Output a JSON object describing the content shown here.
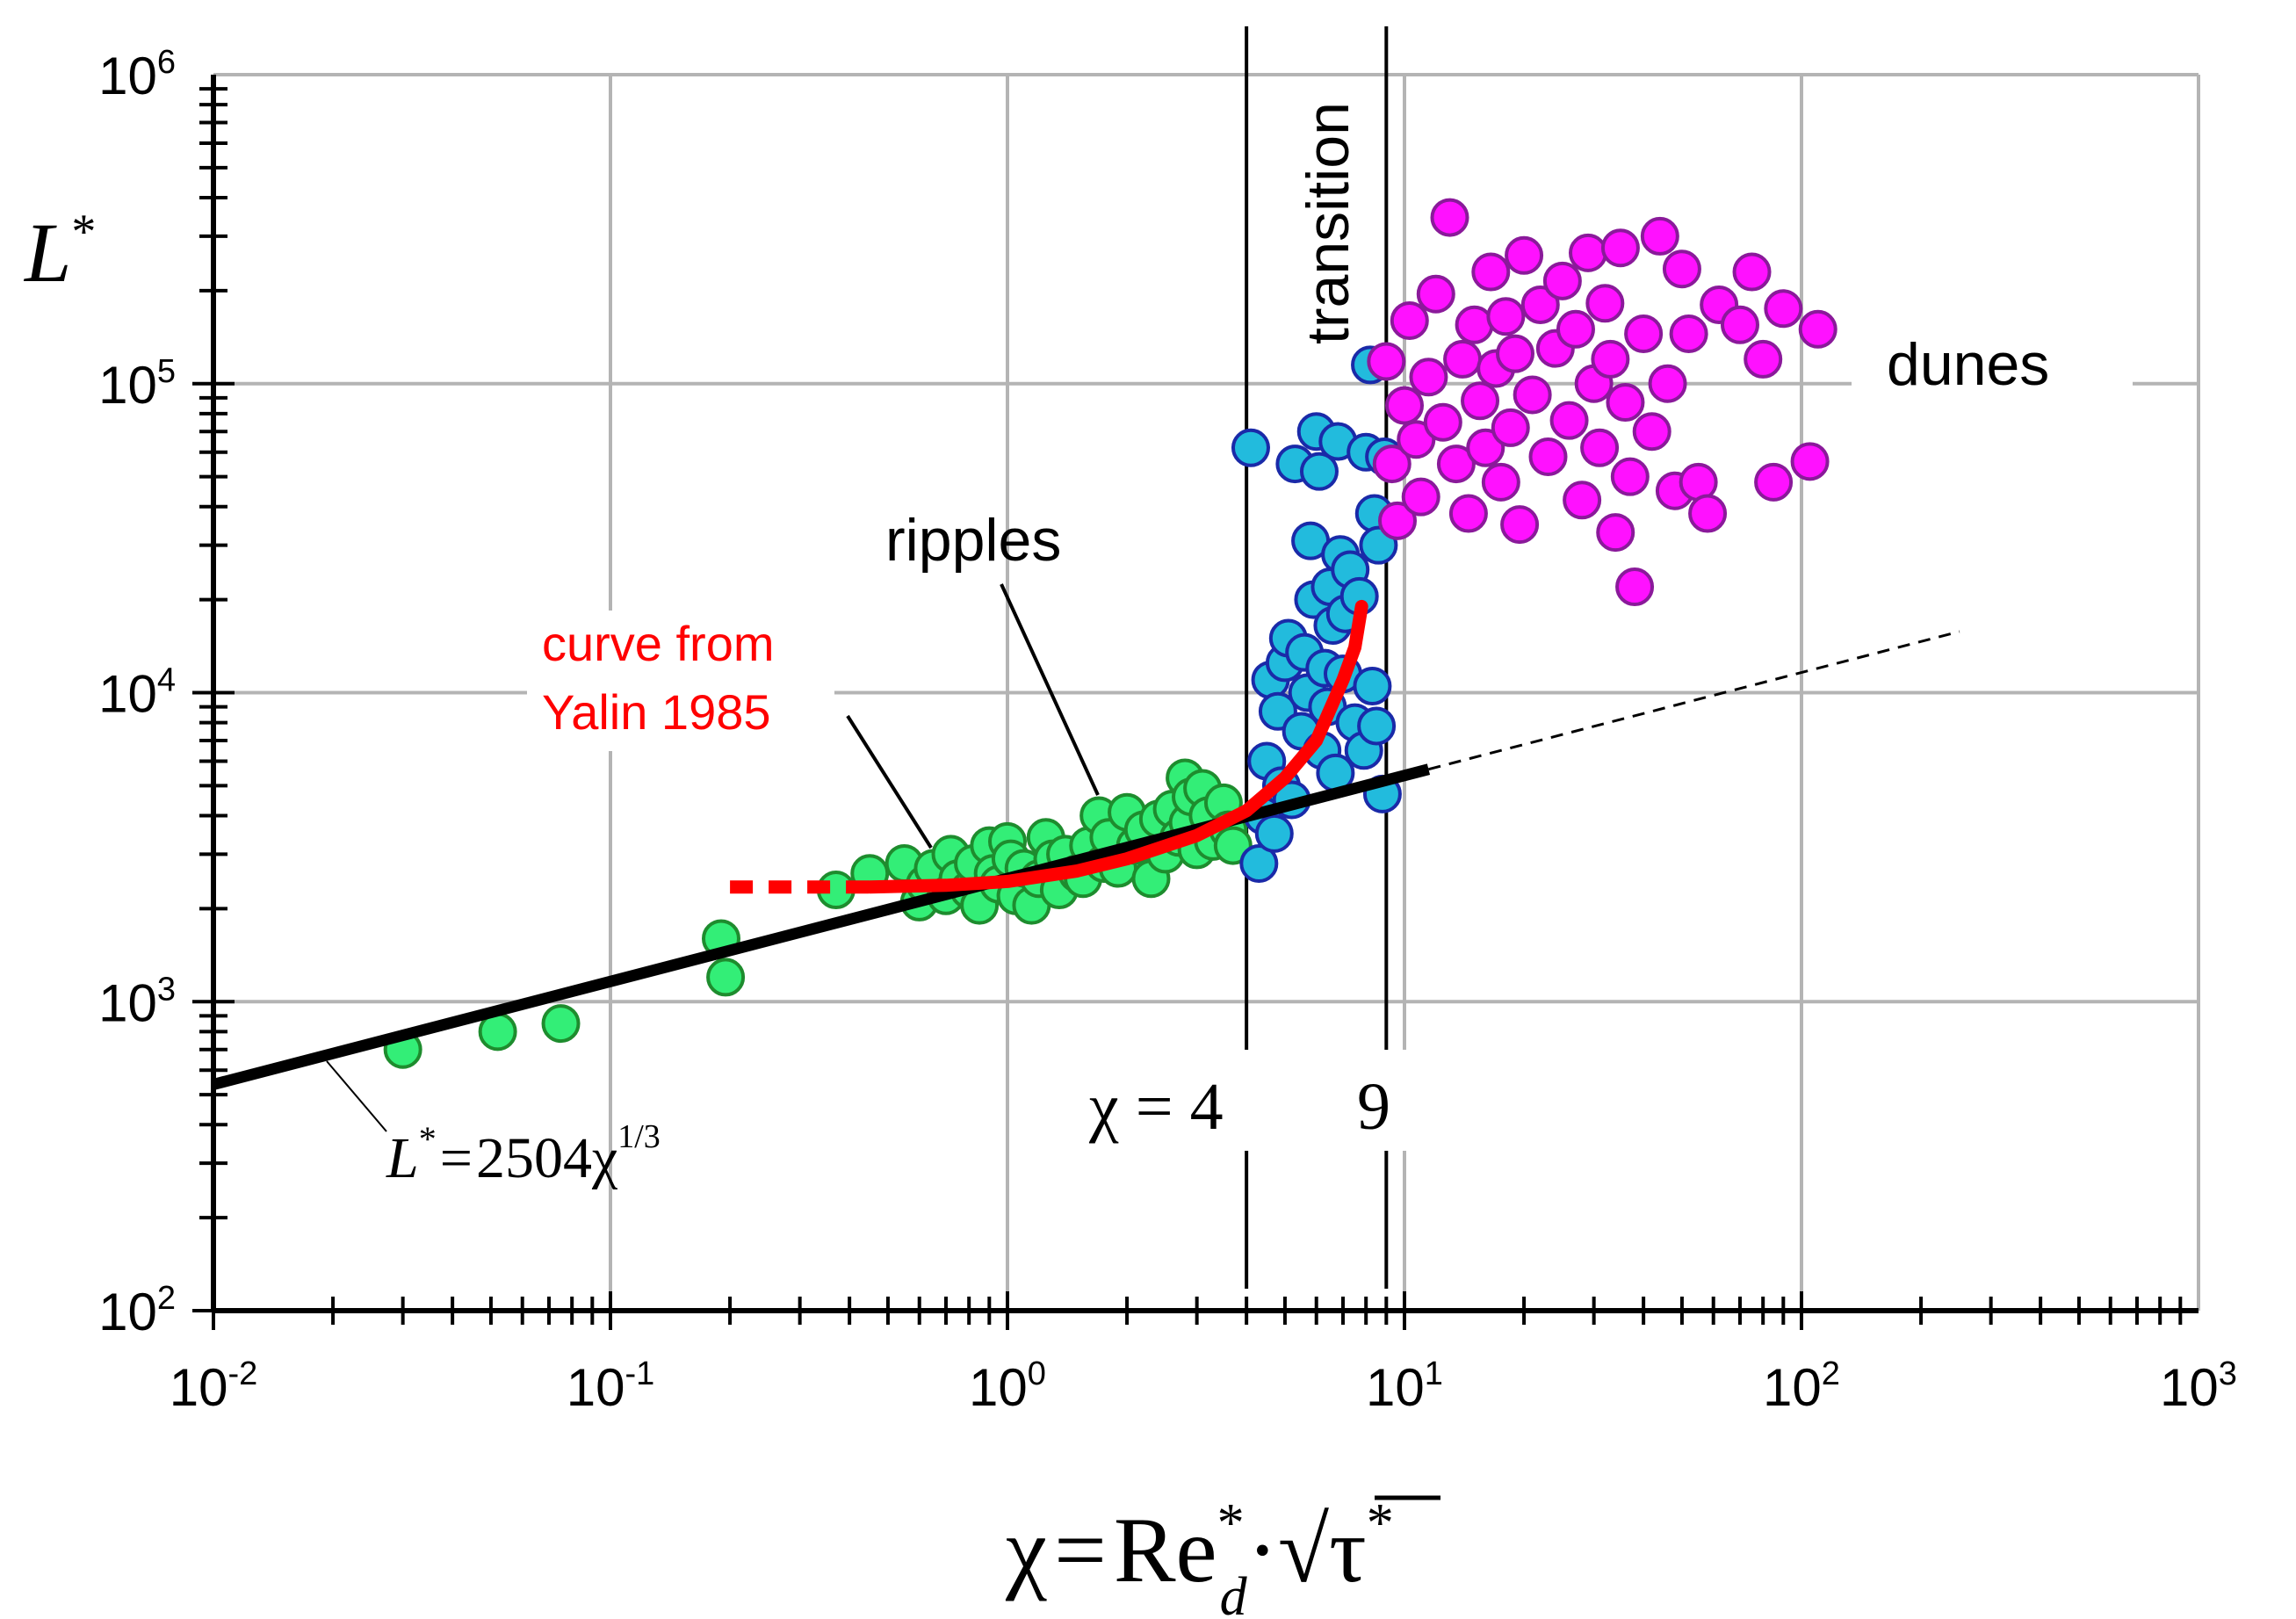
{
  "chart_data": {
    "type": "scatter",
    "title": "",
    "x_scale": "log",
    "y_scale": "log",
    "xlim": [
      0.01,
      1000
    ],
    "ylim": [
      100,
      1000000
    ],
    "grid": true,
    "x_ticks": [
      {
        "base": "10",
        "exp": "-2"
      },
      {
        "base": "10",
        "exp": "-1"
      },
      {
        "base": "10",
        "exp": "0"
      },
      {
        "base": "10",
        "exp": "1"
      },
      {
        "base": "10",
        "exp": "2"
      },
      {
        "base": "10",
        "exp": "3"
      }
    ],
    "y_ticks": [
      {
        "base": "10",
        "exp": "2"
      },
      {
        "base": "10",
        "exp": "3"
      },
      {
        "base": "10",
        "exp": "4"
      },
      {
        "base": "10",
        "exp": "5"
      },
      {
        "base": "10",
        "exp": "6"
      }
    ],
    "y_label": {
      "main": "L",
      "sup": "*"
    },
    "x_label": {
      "lhs": "χ",
      "eq": "=",
      "re": "Re",
      "re_sup": "*",
      "re_sub": "d",
      "dot": "·",
      "sqrt": "√",
      "tau": "τ",
      "tau_sup": "*"
    },
    "annotations": {
      "transition": "transition",
      "dunes": "dunes",
      "ripples": "ripples",
      "yalin_line1": "curve from",
      "yalin_line2": "Yalin 1985",
      "chi_eq_4": "χ = 4",
      "nine": "9",
      "fit_lhs": "L",
      "fit_sup": "*",
      "fit_eq": "=",
      "fit_coef": "2504",
      "fit_chi": "χ",
      "fit_exp": "1/3"
    },
    "vertical_lines": [
      4,
      9
    ],
    "fit_line": {
      "coef": 2504,
      "exponent": 0.3333,
      "solid_range": [
        0.01,
        11.5
      ],
      "dashed_range": [
        11.5,
        250
      ],
      "color": "#000000"
    },
    "yalin_curve": {
      "color": "#ff0000",
      "dashed": [
        [
          0.2,
          2350
        ],
        [
          0.45,
          2350
        ]
      ],
      "solid": [
        [
          0.45,
          2350
        ],
        [
          0.7,
          2380
        ],
        [
          1.0,
          2450
        ],
        [
          1.5,
          2650
        ],
        [
          2.0,
          2900
        ],
        [
          3.0,
          3450
        ],
        [
          4.0,
          4150
        ],
        [
          5.0,
          5300
        ],
        [
          6.0,
          7000
        ],
        [
          7.0,
          11000
        ],
        [
          7.5,
          14000
        ],
        [
          7.8,
          19000
        ]
      ]
    },
    "series": [
      {
        "name": "ripples",
        "fill": "#33ee77",
        "stroke": "#1e8c2e",
        "points": [
          [
            0.03,
            700
          ],
          [
            0.052,
            800
          ],
          [
            0.075,
            850
          ],
          [
            0.19,
            1600
          ],
          [
            0.195,
            1200
          ],
          [
            0.37,
            2300
          ],
          [
            0.45,
            2600
          ],
          [
            0.55,
            2800
          ],
          [
            0.6,
            2100
          ],
          [
            0.62,
            2400
          ],
          [
            0.65,
            2700
          ],
          [
            0.7,
            2200
          ],
          [
            0.72,
            3000
          ],
          [
            0.75,
            2500
          ],
          [
            0.8,
            2300
          ],
          [
            0.82,
            2800
          ],
          [
            0.85,
            2050
          ],
          [
            0.9,
            3200
          ],
          [
            0.92,
            2600
          ],
          [
            0.95,
            2400
          ],
          [
            1.0,
            3300
          ],
          [
            1.02,
            2900
          ],
          [
            1.05,
            2200
          ],
          [
            1.1,
            2700
          ],
          [
            1.15,
            2050
          ],
          [
            1.2,
            2500
          ],
          [
            1.25,
            3400
          ],
          [
            1.3,
            2900
          ],
          [
            1.35,
            2300
          ],
          [
            1.4,
            3000
          ],
          [
            1.5,
            2600
          ],
          [
            1.55,
            2500
          ],
          [
            1.6,
            3200
          ],
          [
            1.7,
            4000
          ],
          [
            1.75,
            2800
          ],
          [
            1.8,
            3400
          ],
          [
            1.9,
            2700
          ],
          [
            2.0,
            4100
          ],
          [
            2.1,
            3200
          ],
          [
            2.2,
            3600
          ],
          [
            2.3,
            2500
          ],
          [
            2.4,
            3900
          ],
          [
            2.5,
            3000
          ],
          [
            2.6,
            4200
          ],
          [
            2.7,
            3400
          ],
          [
            2.8,
            5300
          ],
          [
            2.85,
            3800
          ],
          [
            2.9,
            4600
          ],
          [
            3.0,
            3100
          ],
          [
            3.1,
            4900
          ],
          [
            3.2,
            4000
          ],
          [
            3.3,
            3300
          ],
          [
            3.5,
            4400
          ],
          [
            3.6,
            3600
          ],
          [
            3.7,
            3200
          ]
        ]
      },
      {
        "name": "transition",
        "fill": "#22bbdd",
        "stroke": "#1a2aa8",
        "points": [
          [
            4.1,
            62000
          ],
          [
            4.3,
            2800
          ],
          [
            4.4,
            4000
          ],
          [
            4.5,
            6000
          ],
          [
            4.6,
            11000
          ],
          [
            4.7,
            3500
          ],
          [
            4.8,
            8700
          ],
          [
            4.9,
            5000
          ],
          [
            5.0,
            12500
          ],
          [
            5.1,
            15000
          ],
          [
            5.2,
            4500
          ],
          [
            5.3,
            55000
          ],
          [
            5.5,
            7500
          ],
          [
            5.6,
            13500
          ],
          [
            5.7,
            10000
          ],
          [
            5.8,
            31000
          ],
          [
            5.9,
            20000
          ],
          [
            6.0,
            70000
          ],
          [
            6.1,
            52000
          ],
          [
            6.2,
            6500
          ],
          [
            6.3,
            12000
          ],
          [
            6.4,
            9000
          ],
          [
            6.5,
            22000
          ],
          [
            6.6,
            16500
          ],
          [
            6.7,
            5500
          ],
          [
            6.8,
            65000
          ],
          [
            6.9,
            28000
          ],
          [
            7.0,
            11500
          ],
          [
            7.1,
            18000
          ],
          [
            7.3,
            25000
          ],
          [
            7.5,
            8000
          ],
          [
            7.7,
            20500
          ],
          [
            7.9,
            6500
          ],
          [
            8.0,
            60000
          ],
          [
            8.2,
            115000
          ],
          [
            8.3,
            10500
          ],
          [
            8.4,
            38000
          ],
          [
            8.5,
            7800
          ],
          [
            8.6,
            30000
          ],
          [
            8.8,
            4700
          ],
          [
            8.9,
            58000
          ]
        ]
      },
      {
        "name": "dunes",
        "fill": "#ff11ff",
        "stroke": "#8a1a9a",
        "points": [
          [
            9.0,
            118000
          ],
          [
            9.3,
            55000
          ],
          [
            9.6,
            36000
          ],
          [
            10.0,
            85000
          ],
          [
            10.3,
            160000
          ],
          [
            10.7,
            66000
          ],
          [
            11.0,
            43000
          ],
          [
            11.5,
            105000
          ],
          [
            12.0,
            195000
          ],
          [
            12.5,
            75000
          ],
          [
            13.0,
            345000
          ],
          [
            13.5,
            55000
          ],
          [
            14.0,
            120000
          ],
          [
            14.5,
            38000
          ],
          [
            15.0,
            155000
          ],
          [
            15.5,
            88000
          ],
          [
            16.0,
            62000
          ],
          [
            16.5,
            230000
          ],
          [
            17.0,
            112000
          ],
          [
            17.5,
            48000
          ],
          [
            18.0,
            165000
          ],
          [
            18.5,
            72000
          ],
          [
            19.0,
            125000
          ],
          [
            19.5,
            35000
          ],
          [
            20.0,
            260000
          ],
          [
            21.0,
            92000
          ],
          [
            22.0,
            180000
          ],
          [
            23.0,
            58000
          ],
          [
            24.0,
            130000
          ],
          [
            25.0,
            215000
          ],
          [
            26.0,
            76000
          ],
          [
            27.0,
            150000
          ],
          [
            28.0,
            42000
          ],
          [
            29.0,
            265000
          ],
          [
            30.0,
            100000
          ],
          [
            31.0,
            62000
          ],
          [
            32.0,
            182000
          ],
          [
            33.0,
            120000
          ],
          [
            34.0,
            33000
          ],
          [
            35.0,
            275000
          ],
          [
            36.0,
            87000
          ],
          [
            37.0,
            50000
          ],
          [
            38.0,
            22000
          ],
          [
            40.0,
            145000
          ],
          [
            42.0,
            70000
          ],
          [
            44.0,
            300000
          ],
          [
            46.0,
            100000
          ],
          [
            48.0,
            45000
          ],
          [
            50.0,
            235000
          ],
          [
            52.0,
            145000
          ],
          [
            55.0,
            48000
          ],
          [
            58.0,
            38000
          ],
          [
            62.0,
            180000
          ],
          [
            70.0,
            155000
          ],
          [
            75.0,
            230000
          ],
          [
            80.0,
            120000
          ],
          [
            85.0,
            48000
          ],
          [
            90.0,
            175000
          ],
          [
            110.0,
            150000
          ],
          [
            105.0,
            56000
          ]
        ]
      }
    ]
  }
}
